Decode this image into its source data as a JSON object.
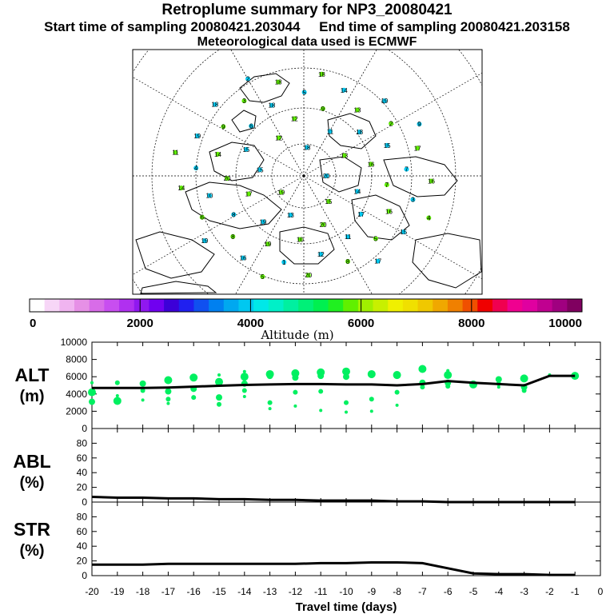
{
  "header": {
    "title": "Retroplume summary for NP3_20080421",
    "sampling": "Start time of sampling 20080421.203044     End time of sampling 20080421.203158",
    "meteo": "Meteorological data used is ECMWF"
  },
  "colorbar": {
    "label": "Altitude (m)",
    "ticks": [
      "0",
      "2000",
      "4000",
      "6000",
      "8000",
      "10000"
    ],
    "colors": [
      "#ffffff",
      "#f7d6f7",
      "#f0b4f0",
      "#e690e6",
      "#d86ce8",
      "#c84ef0",
      "#b030f0",
      "#9018f0",
      "#7000f0",
      "#3c00d8",
      "#2020f0",
      "#1050f0",
      "#0080f0",
      "#00a8f0",
      "#00c8f0",
      "#00e8e8",
      "#00f0c8",
      "#00f0a0",
      "#00f078",
      "#00f050",
      "#20f020",
      "#60f000",
      "#a0f000",
      "#c8f000",
      "#f0f000",
      "#f0e000",
      "#f0c800",
      "#f0a800",
      "#f08000",
      "#f05000",
      "#f00000",
      "#f00050",
      "#f00090",
      "#e000a0",
      "#c00090",
      "#a00080",
      "#800060"
    ]
  },
  "map": {
    "labels": [
      "20",
      "19",
      "18",
      "15",
      "15",
      "13",
      "13",
      "12",
      "14",
      "17",
      "11",
      "20",
      "15",
      "16",
      "19",
      "12",
      "17",
      "20",
      "18",
      "10",
      "6",
      "7",
      "8",
      "9",
      "11",
      "14",
      "15",
      "19",
      "18",
      "16",
      "10",
      "13",
      "12",
      "9",
      "7",
      "8",
      "5",
      "5",
      "4",
      "2",
      "1",
      "3",
      "3",
      "6",
      "14",
      "8",
      "19",
      "17",
      "16",
      "18",
      "15",
      "14",
      "19",
      "20",
      "18",
      "16",
      "19",
      "18",
      "17",
      "11",
      "9",
      "5",
      "2",
      "4"
    ]
  },
  "panels": {
    "alt": {
      "label": "ALT",
      "unit": "(m)"
    },
    "abl": {
      "label": "ABL",
      "unit": "(%)"
    },
    "str": {
      "label": "STR",
      "unit": "(%)"
    }
  },
  "xaxis": {
    "label": "Travel time (days)",
    "ticks": [
      "-20",
      "-19",
      "-18",
      "-17",
      "-16",
      "-15",
      "-14",
      "-13",
      "-12",
      "-11",
      "-10",
      "-9",
      "-8",
      "-7",
      "-6",
      "-5",
      "-4",
      "-3",
      "-2",
      "-1",
      "0"
    ]
  },
  "colors": {
    "scatter": "#00f060",
    "line": "#000000",
    "frame": "#000000"
  },
  "chart_data": [
    {
      "type": "line",
      "name": "ALT",
      "ylabel": "ALT (m)",
      "ylim": [
        0,
        10000
      ],
      "yticks": [
        "0",
        "2000",
        "4000",
        "6000",
        "8000",
        "10000"
      ],
      "x": [
        -20,
        -19,
        -18,
        -17,
        -16,
        -15,
        -14,
        -13,
        -12,
        -11,
        -10,
        -9,
        -8,
        -7,
        -6,
        -5,
        -4,
        -3,
        -2,
        -1
      ],
      "series": [
        {
          "name": "mean altitude",
          "values": [
            4700,
            4700,
            4700,
            4750,
            4850,
            4950,
            5050,
            5100,
            5150,
            5150,
            5100,
            5100,
            5000,
            5150,
            5500,
            5300,
            5150,
            5000,
            6100,
            6100
          ]
        }
      ],
      "scatter_points": [
        [
          -20,
          5300
        ],
        [
          -20,
          4200
        ],
        [
          -20,
          3100
        ],
        [
          -19,
          5300
        ],
        [
          -19,
          3800
        ],
        [
          -19,
          3200
        ],
        [
          -18,
          5200
        ],
        [
          -18,
          4400
        ],
        [
          -18,
          3300
        ],
        [
          -17,
          5600
        ],
        [
          -17,
          4300
        ],
        [
          -17,
          3400
        ],
        [
          -17,
          2900
        ],
        [
          -16,
          5900
        ],
        [
          -16,
          4600
        ],
        [
          -16,
          3600
        ],
        [
          -15,
          6200
        ],
        [
          -15,
          5400
        ],
        [
          -15,
          3600
        ],
        [
          -15,
          2800
        ],
        [
          -14,
          6600
        ],
        [
          -14,
          6000
        ],
        [
          -14,
          5200
        ],
        [
          -14,
          4400
        ],
        [
          -14,
          3700
        ],
        [
          -13,
          6300
        ],
        [
          -13,
          6100
        ],
        [
          -13,
          3000
        ],
        [
          -13,
          2300
        ],
        [
          -12,
          6400
        ],
        [
          -12,
          5900
        ],
        [
          -12,
          4200
        ],
        [
          -12,
          2600
        ],
        [
          -11,
          6500
        ],
        [
          -11,
          6100
        ],
        [
          -11,
          4300
        ],
        [
          -11,
          2100
        ],
        [
          -10,
          6600
        ],
        [
          -10,
          6000
        ],
        [
          -10,
          3000
        ],
        [
          -10,
          1900
        ],
        [
          -9,
          6300
        ],
        [
          -9,
          6200
        ],
        [
          -9,
          3400
        ],
        [
          -9,
          2000
        ],
        [
          -8,
          6200
        ],
        [
          -8,
          6100
        ],
        [
          -8,
          4200
        ],
        [
          -8,
          2700
        ],
        [
          -7,
          6900
        ],
        [
          -7,
          5300
        ],
        [
          -7,
          4800
        ],
        [
          -6,
          6700
        ],
        [
          -6,
          6200
        ],
        [
          -6,
          5300
        ],
        [
          -6,
          4900
        ],
        [
          -5,
          5300
        ],
        [
          -5,
          5100
        ],
        [
          -4,
          5700
        ],
        [
          -4,
          5200
        ],
        [
          -4,
          4800
        ],
        [
          -3,
          5800
        ],
        [
          -3,
          4800
        ],
        [
          -3,
          4400
        ],
        [
          -2,
          6200
        ],
        [
          -1,
          6100
        ]
      ]
    },
    {
      "type": "line",
      "name": "ABL",
      "ylabel": "ABL (%)",
      "ylim": [
        0,
        100
      ],
      "yticks": [
        "0",
        "20",
        "40",
        "60",
        "80"
      ],
      "x": [
        -20,
        -19,
        -18,
        -17,
        -16,
        -15,
        -14,
        -13,
        -12,
        -11,
        -10,
        -9,
        -8,
        -7,
        -6,
        -5,
        -4,
        -3,
        -2,
        -1
      ],
      "series": [
        {
          "name": "ABL fraction",
          "values": [
            7,
            6,
            6,
            5,
            5,
            4,
            4,
            3,
            3,
            2,
            2,
            2,
            1,
            1,
            0,
            0,
            0,
            0,
            0,
            0
          ]
        }
      ]
    },
    {
      "type": "line",
      "name": "STR",
      "ylabel": "STR (%)",
      "ylim": [
        0,
        100
      ],
      "yticks": [
        "0",
        "20",
        "40",
        "60",
        "80"
      ],
      "x": [
        -20,
        -19,
        -18,
        -17,
        -16,
        -15,
        -14,
        -13,
        -12,
        -11,
        -10,
        -9,
        -8,
        -7,
        -6,
        -5,
        -4,
        -3,
        -2,
        -1
      ],
      "series": [
        {
          "name": "stratospheric fraction",
          "values": [
            15,
            15,
            15,
            16,
            16,
            16,
            16,
            16,
            16,
            17,
            17,
            18,
            18,
            17,
            10,
            3,
            2,
            2,
            1,
            1
          ]
        }
      ]
    }
  ]
}
